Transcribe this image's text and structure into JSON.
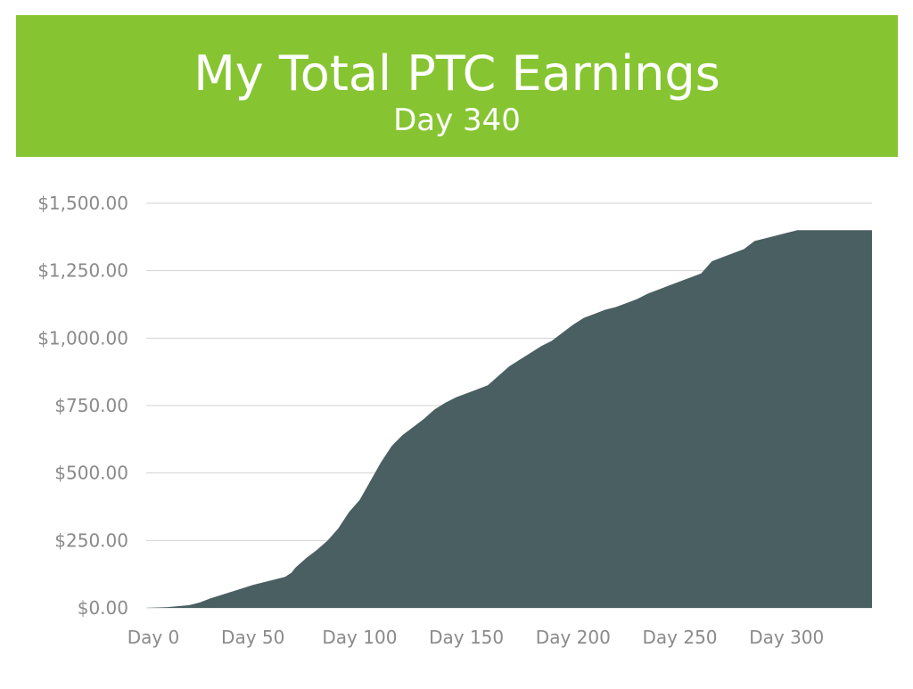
{
  "header": {
    "title": "My Total PTC Earnings",
    "subtitle": "Day 340"
  },
  "colors": {
    "banner": "#86c531",
    "area": "#4a5f61",
    "grid": "#d3d3d3",
    "tick_text": "#8a8a8a"
  },
  "chart_data": {
    "type": "area",
    "title": "My Total PTC Earnings",
    "subtitle": "Day 340",
    "xlabel": "",
    "ylabel": "",
    "xlim": [
      0,
      340
    ],
    "ylim": [
      0,
      1500
    ],
    "grid": true,
    "legend": "none",
    "y_ticks": [
      {
        "value": 0,
        "label": "$0.00"
      },
      {
        "value": 250,
        "label": "$250.00"
      },
      {
        "value": 500,
        "label": "$500.00"
      },
      {
        "value": 750,
        "label": "$750.00"
      },
      {
        "value": 1000,
        "label": "$1,000.00"
      },
      {
        "value": 1250,
        "label": "$1,250.00"
      },
      {
        "value": 1500,
        "label": "$1,500.00"
      }
    ],
    "x_ticks": [
      {
        "value": 0,
        "label": "Day 0"
      },
      {
        "value": 50,
        "label": "Day 50"
      },
      {
        "value": 100,
        "label": "Day 100"
      },
      {
        "value": 150,
        "label": "Day 150"
      },
      {
        "value": 200,
        "label": "Day 200"
      },
      {
        "value": 250,
        "label": "Day 250"
      },
      {
        "value": 300,
        "label": "Day 300"
      }
    ],
    "series": [
      {
        "x": [
          0,
          10,
          20,
          25,
          30,
          40,
          50,
          60,
          65,
          68,
          70,
          75,
          80,
          85,
          90,
          95,
          100,
          105,
          110,
          115,
          120,
          125,
          130,
          135,
          140,
          145,
          150,
          155,
          160,
          165,
          170,
          175,
          180,
          185,
          190,
          195,
          200,
          205,
          210,
          215,
          220,
          225,
          230,
          235,
          240,
          245,
          250,
          255,
          260,
          265,
          270,
          275,
          280,
          285,
          290,
          295,
          300,
          305,
          310,
          315,
          320,
          325,
          330,
          335,
          340
        ],
        "y": [
          0,
          3,
          10,
          20,
          35,
          60,
          85,
          105,
          115,
          130,
          150,
          185,
          215,
          250,
          295,
          355,
          400,
          470,
          540,
          600,
          640,
          670,
          700,
          735,
          760,
          780,
          795,
          810,
          825,
          860,
          895,
          920,
          945,
          970,
          990,
          1020,
          1050,
          1075,
          1090,
          1105,
          1115,
          1130,
          1145,
          1165,
          1180,
          1195,
          1210,
          1225,
          1240,
          1285,
          1300,
          1315,
          1330,
          1360,
          1370,
          1380,
          1390,
          1400,
          1400,
          1400,
          1400,
          1400,
          1400,
          1400,
          1400
        ]
      }
    ]
  }
}
